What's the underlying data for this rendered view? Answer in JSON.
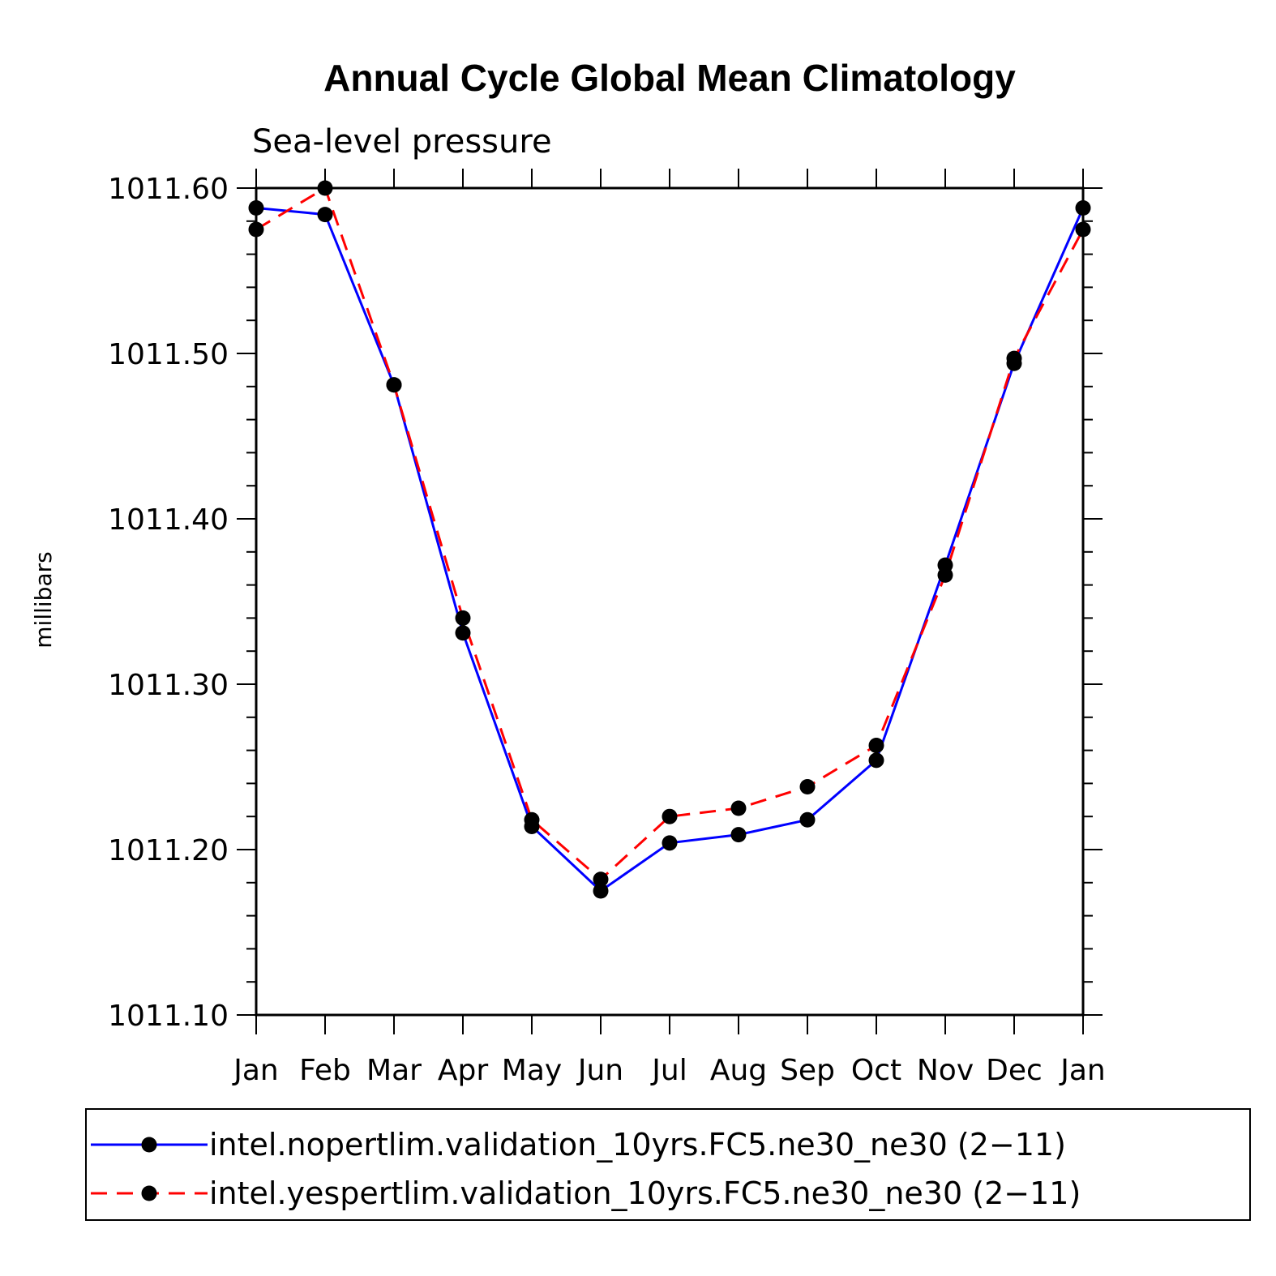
{
  "chart_data": {
    "type": "line",
    "title": "Annual Cycle Global Mean Climatology",
    "subtitle": "Sea-level pressure",
    "xlabel": "",
    "ylabel": "millibars",
    "categories": [
      "Jan",
      "Feb",
      "Mar",
      "Apr",
      "May",
      "Jun",
      "Jul",
      "Aug",
      "Sep",
      "Oct",
      "Nov",
      "Dec",
      "Jan"
    ],
    "ylim": [
      1011.1,
      1011.6
    ],
    "yticks": [
      "1011.10",
      "1011.20",
      "1011.30",
      "1011.40",
      "1011.50",
      "1011.60"
    ],
    "series": [
      {
        "name": "intel.nopertlim.validation_10yrs.FC5.ne30_ne30 (2−11)",
        "color": "#0000ff",
        "style": "solid",
        "values": [
          1011.588,
          1011.584,
          1011.481,
          1011.331,
          1011.214,
          1011.175,
          1011.204,
          1011.209,
          1011.218,
          1011.254,
          1011.372,
          1011.494,
          1011.588
        ]
      },
      {
        "name": "intel.yespertlim.validation_10yrs.FC5.ne30_ne30 (2−11)",
        "color": "#ff0000",
        "style": "dashed",
        "values": [
          1011.575,
          1011.6,
          1011.481,
          1011.34,
          1011.218,
          1011.182,
          1011.22,
          1011.225,
          1011.238,
          1011.263,
          1011.366,
          1011.497,
          1011.575
        ]
      }
    ],
    "legend": "bottom"
  }
}
